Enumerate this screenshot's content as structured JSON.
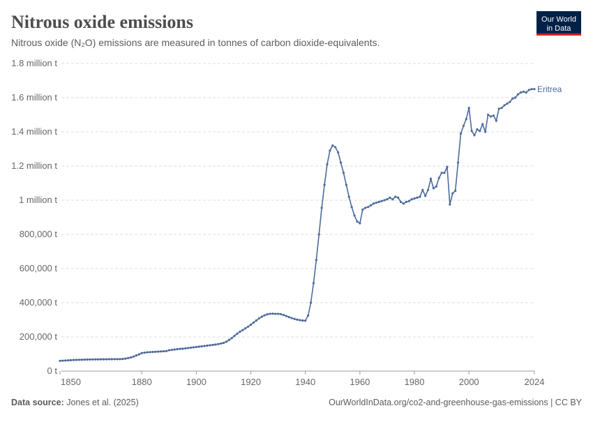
{
  "chart_data": {
    "type": "line",
    "title": "Nitrous oxide emissions",
    "subtitle": "Nitrous oxide (N₂O) emissions are measured in tonnes of carbon dioxide-equivalents.",
    "source_label": "Data source:",
    "source": "Jones et al. (2025)",
    "footer_right": "OurWorldInData.org/co2-and-greenhouse-gas-emissions | CC BY",
    "logo": [
      "Our World",
      "in Data"
    ],
    "grid": true,
    "xlim": [
      1850,
      2024
    ],
    "xticks": [
      1850,
      1880,
      1900,
      1920,
      1940,
      1960,
      1980,
      2000,
      2024
    ],
    "ylim": [
      0,
      1800000
    ],
    "yticks": [
      {
        "value": 0,
        "label": "0 t"
      },
      {
        "value": 200000,
        "label": "200,000 t"
      },
      {
        "value": 400000,
        "label": "400,000 t"
      },
      {
        "value": 600000,
        "label": "600,000 t"
      },
      {
        "value": 800000,
        "label": "800,000 t"
      },
      {
        "value": 1000000,
        "label": "1 million t"
      },
      {
        "value": 1200000,
        "label": "1.2 million t"
      },
      {
        "value": 1400000,
        "label": "1.4 million t"
      },
      {
        "value": 1600000,
        "label": "1.6 million t"
      },
      {
        "value": 1800000,
        "label": "1.8 million t"
      }
    ],
    "x": [
      1850,
      1851,
      1852,
      1853,
      1854,
      1855,
      1856,
      1857,
      1858,
      1859,
      1860,
      1861,
      1862,
      1863,
      1864,
      1865,
      1866,
      1867,
      1868,
      1869,
      1870,
      1871,
      1872,
      1873,
      1874,
      1875,
      1876,
      1877,
      1878,
      1879,
      1880,
      1881,
      1882,
      1883,
      1884,
      1885,
      1886,
      1887,
      1888,
      1889,
      1890,
      1891,
      1892,
      1893,
      1894,
      1895,
      1896,
      1897,
      1898,
      1899,
      1900,
      1901,
      1902,
      1903,
      1904,
      1905,
      1906,
      1907,
      1908,
      1909,
      1910,
      1911,
      1912,
      1913,
      1914,
      1915,
      1916,
      1917,
      1918,
      1919,
      1920,
      1921,
      1922,
      1923,
      1924,
      1925,
      1926,
      1927,
      1928,
      1929,
      1930,
      1931,
      1932,
      1933,
      1934,
      1935,
      1936,
      1937,
      1938,
      1939,
      1940,
      1941,
      1942,
      1943,
      1944,
      1945,
      1946,
      1947,
      1948,
      1949,
      1950,
      1951,
      1952,
      1953,
      1954,
      1955,
      1956,
      1957,
      1958,
      1959,
      1960,
      1961,
      1962,
      1963,
      1964,
      1965,
      1966,
      1967,
      1968,
      1969,
      1970,
      1971,
      1972,
      1973,
      1974,
      1975,
      1976,
      1977,
      1978,
      1979,
      1980,
      1981,
      1982,
      1983,
      1984,
      1985,
      1986,
      1987,
      1988,
      1989,
      1990,
      1991,
      1992,
      1993,
      1994,
      1995,
      1996,
      1997,
      1998,
      1999,
      2000,
      2001,
      2002,
      2003,
      2004,
      2005,
      2006,
      2007,
      2008,
      2009,
      2010,
      2011,
      2012,
      2013,
      2014,
      2015,
      2016,
      2017,
      2018,
      2019,
      2020,
      2021,
      2022,
      2023,
      2024
    ],
    "series": [
      {
        "name": "Eritrea",
        "color": "#4c6a9c",
        "values": [
          60000,
          61000,
          62000,
          63000,
          64000,
          65000,
          65500,
          66000,
          66500,
          67000,
          67500,
          68000,
          68000,
          68500,
          68500,
          69000,
          69000,
          69000,
          69500,
          69500,
          70000,
          70000,
          70000,
          71000,
          73000,
          76000,
          80000,
          85000,
          92000,
          98000,
          105000,
          108000,
          110000,
          111000,
          112000,
          113000,
          114000,
          115000,
          116000,
          117000,
          122000,
          124000,
          126000,
          128000,
          130000,
          131000,
          133000,
          135000,
          137000,
          139000,
          141000,
          143000,
          145000,
          147000,
          149000,
          151000,
          153000,
          155000,
          158000,
          161000,
          165000,
          172000,
          182000,
          193000,
          206000,
          219000,
          230000,
          240000,
          250000,
          260000,
          272000,
          284000,
          296000,
          308000,
          318000,
          326000,
          332000,
          335000,
          336000,
          335000,
          335000,
          333000,
          328000,
          322000,
          316000,
          310000,
          305000,
          301000,
          298000,
          296000,
          295000,
          325000,
          400000,
          515000,
          650000,
          800000,
          955000,
          1090000,
          1210000,
          1290000,
          1320000,
          1310000,
          1280000,
          1220000,
          1160000,
          1090000,
          1020000,
          960000,
          910000,
          875000,
          865000,
          945000,
          955000,
          960000,
          970000,
          980000,
          985000,
          990000,
          995000,
          1000000,
          1005000,
          1015000,
          1005000,
          1020000,
          1015000,
          990000,
          980000,
          990000,
          995000,
          1005000,
          1010000,
          1015000,
          1020000,
          1060000,
          1025000,
          1060000,
          1125000,
          1070000,
          1080000,
          1130000,
          1160000,
          1160000,
          1195000,
          975000,
          1040000,
          1055000,
          1220000,
          1390000,
          1435000,
          1475000,
          1540000,
          1405000,
          1380000,
          1415000,
          1405000,
          1445000,
          1400000,
          1500000,
          1490000,
          1495000,
          1465000,
          1535000,
          1540000,
          1555000,
          1565000,
          1575000,
          1595000,
          1600000,
          1620000,
          1630000,
          1635000,
          1630000,
          1645000,
          1650000,
          1650000
        ]
      }
    ]
  }
}
